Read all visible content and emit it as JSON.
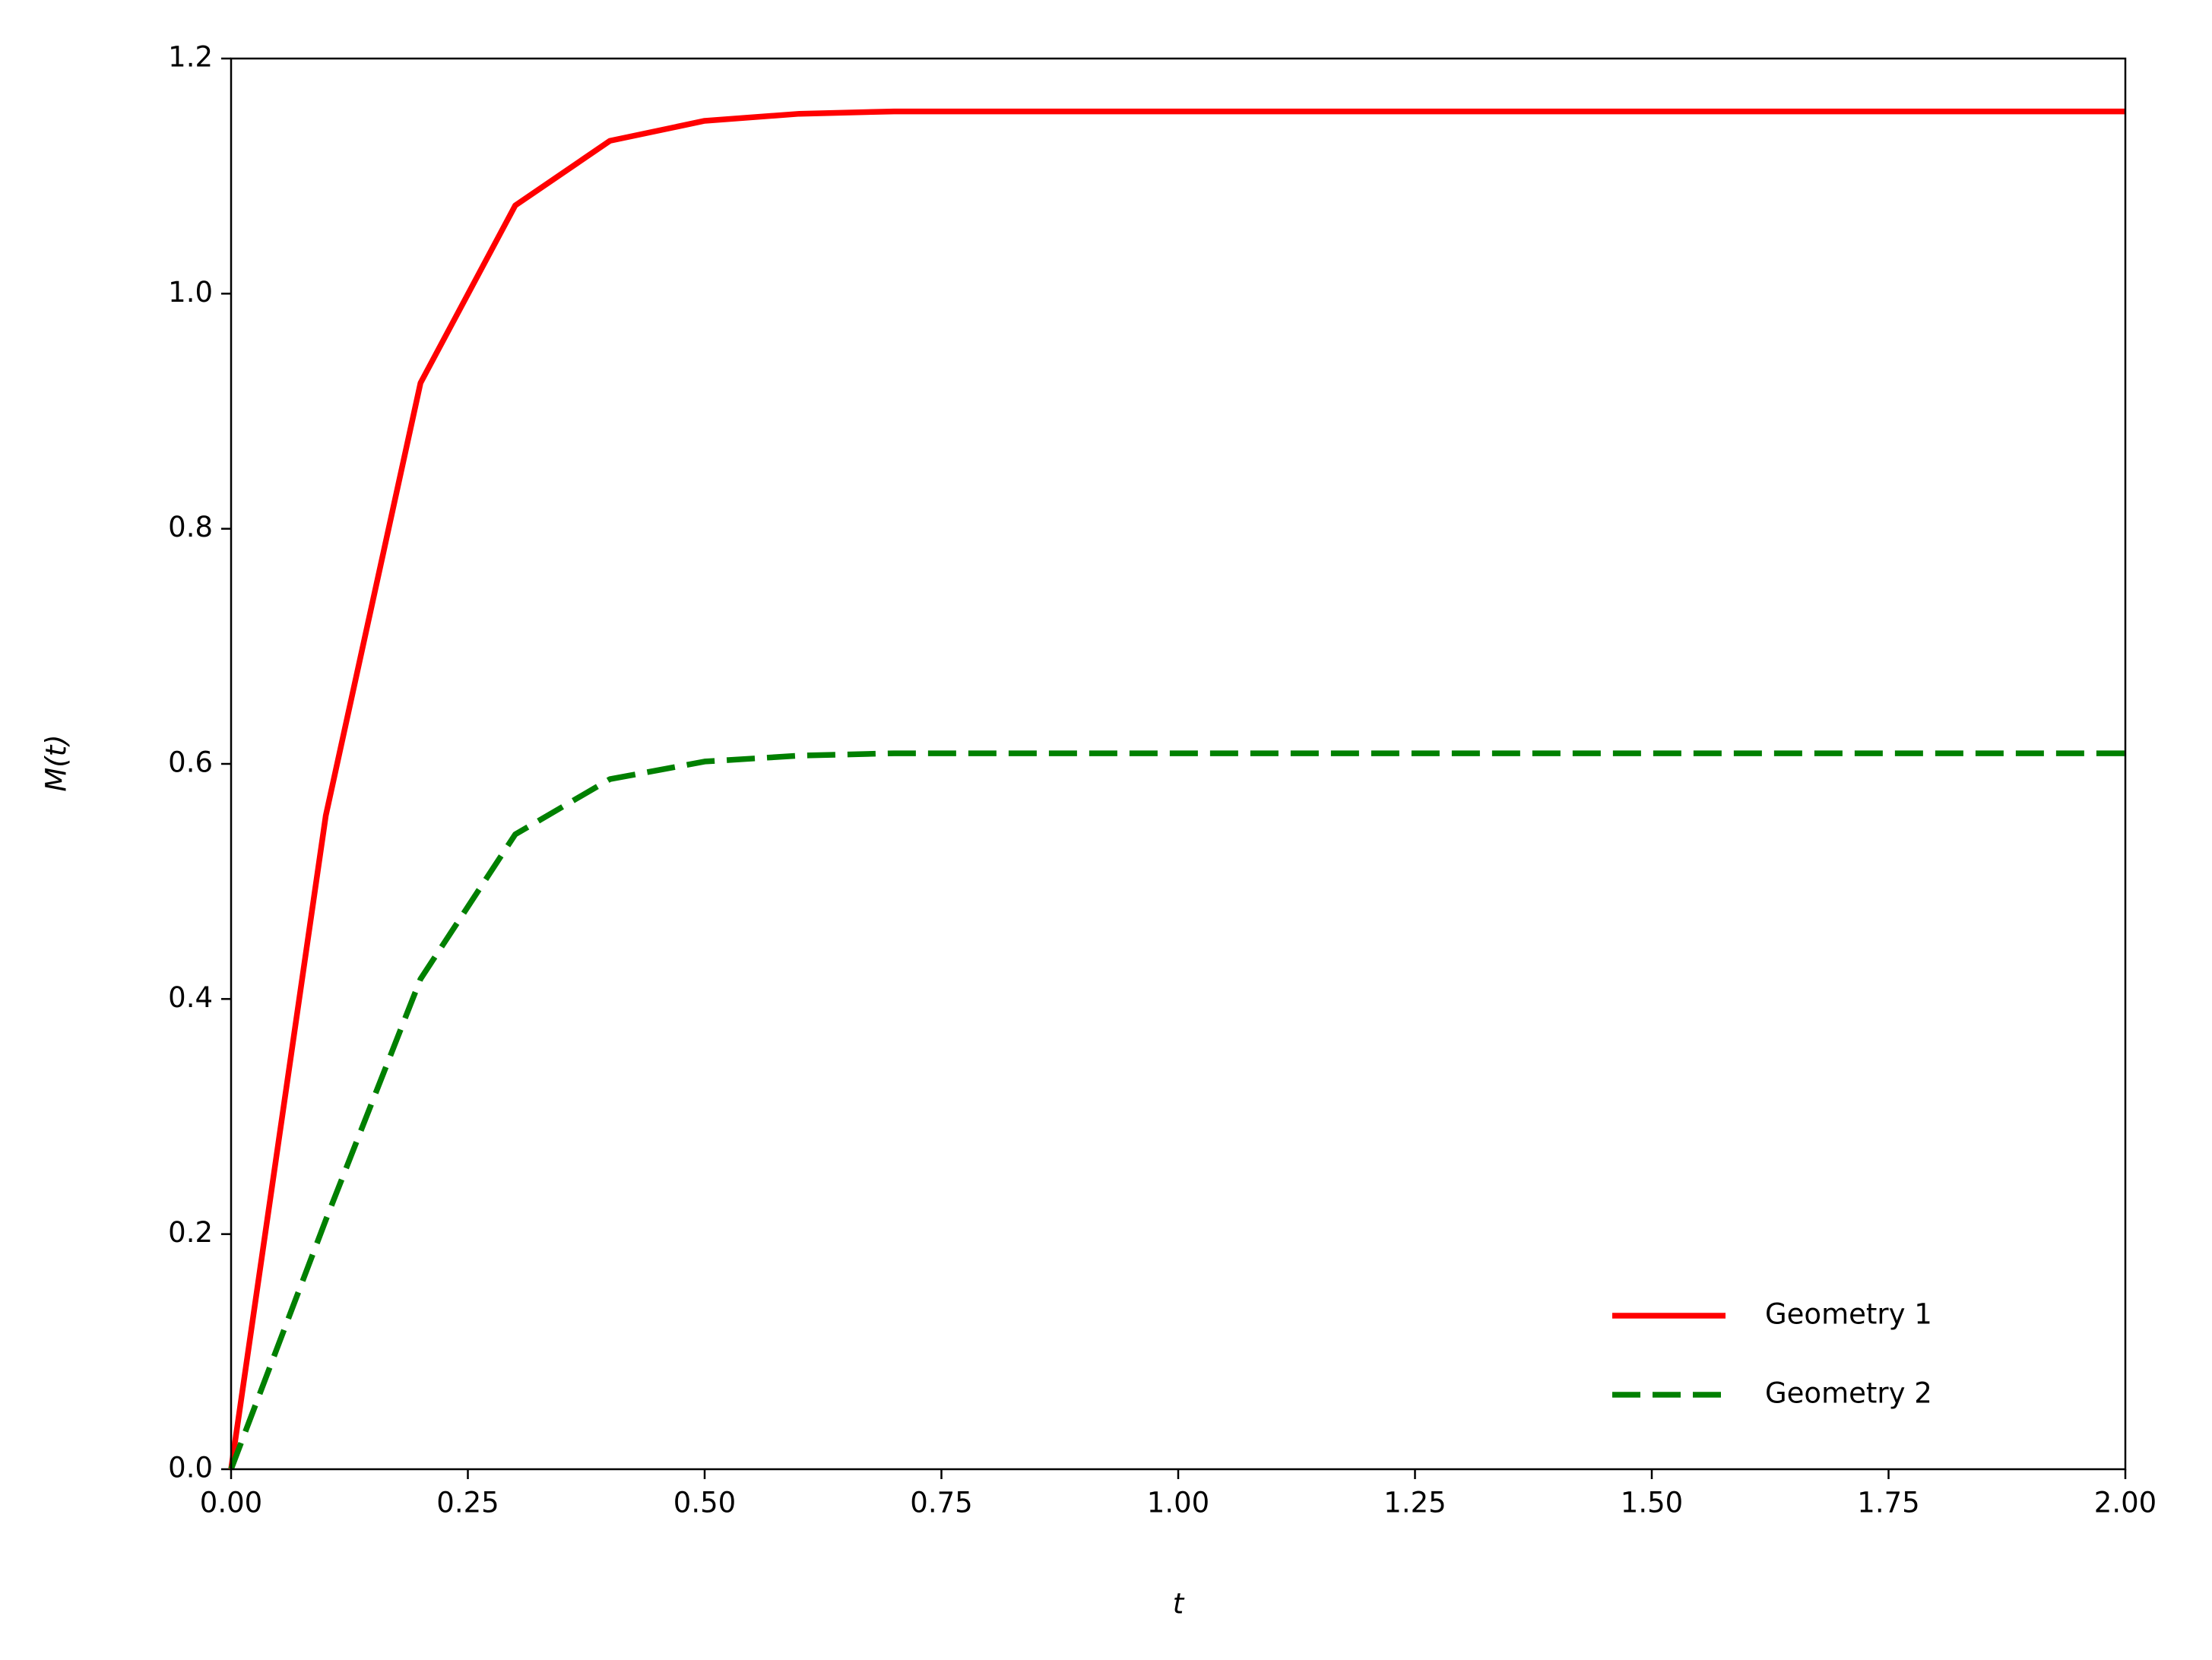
{
  "chart_data": {
    "type": "line",
    "xlabel": "t",
    "ylabel": "M(t)",
    "x": [
      0,
      0.1,
      0.2,
      0.3,
      0.4,
      0.5,
      0.6,
      0.7,
      0.8,
      0.9,
      1.0,
      1.1,
      1.2,
      1.3,
      1.4,
      1.5,
      1.6,
      1.7,
      1.8,
      1.9,
      2.0
    ],
    "series": [
      {
        "name": "Geometry 1",
        "color": "#ff0000",
        "dash": "solid",
        "values": [
          0,
          0.556,
          0.924,
          1.075,
          1.13,
          1.147,
          1.153,
          1.155,
          1.155,
          1.155,
          1.155,
          1.155,
          1.155,
          1.155,
          1.155,
          1.155,
          1.155,
          1.155,
          1.155,
          1.155,
          1.155
        ]
      },
      {
        "name": "Geometry 2",
        "color": "#008000",
        "dash": "dashed",
        "values": [
          0,
          0.212,
          0.417,
          0.54,
          0.587,
          0.602,
          0.607,
          0.609,
          0.609,
          0.609,
          0.609,
          0.609,
          0.609,
          0.609,
          0.609,
          0.609,
          0.609,
          0.609,
          0.609,
          0.609,
          0.609
        ]
      }
    ],
    "xlim": [
      0,
      2
    ],
    "xticks": [
      {
        "value": 0,
        "label": "0.00"
      },
      {
        "value": 0.25,
        "label": "0.25"
      },
      {
        "value": 0.5,
        "label": "0.50"
      },
      {
        "value": 0.75,
        "label": "0.75"
      },
      {
        "value": 1,
        "label": "1.00"
      },
      {
        "value": 1.25,
        "label": "1.25"
      },
      {
        "value": 1.5,
        "label": "1.50"
      },
      {
        "value": 1.75,
        "label": "1.75"
      },
      {
        "value": 2,
        "label": "2.00"
      }
    ],
    "ylim": [
      0,
      1.2
    ],
    "yticks": [
      {
        "value": 0,
        "label": "0.0"
      },
      {
        "value": 0.2,
        "label": "0.2"
      },
      {
        "value": 0.4,
        "label": "0.4"
      },
      {
        "value": 0.6,
        "label": "0.6"
      },
      {
        "value": 0.8,
        "label": "0.8"
      },
      {
        "value": 1,
        "label": "1.0"
      },
      {
        "value": 1.2,
        "label": "1.2"
      }
    ],
    "grid": false,
    "legend": "lower right"
  }
}
